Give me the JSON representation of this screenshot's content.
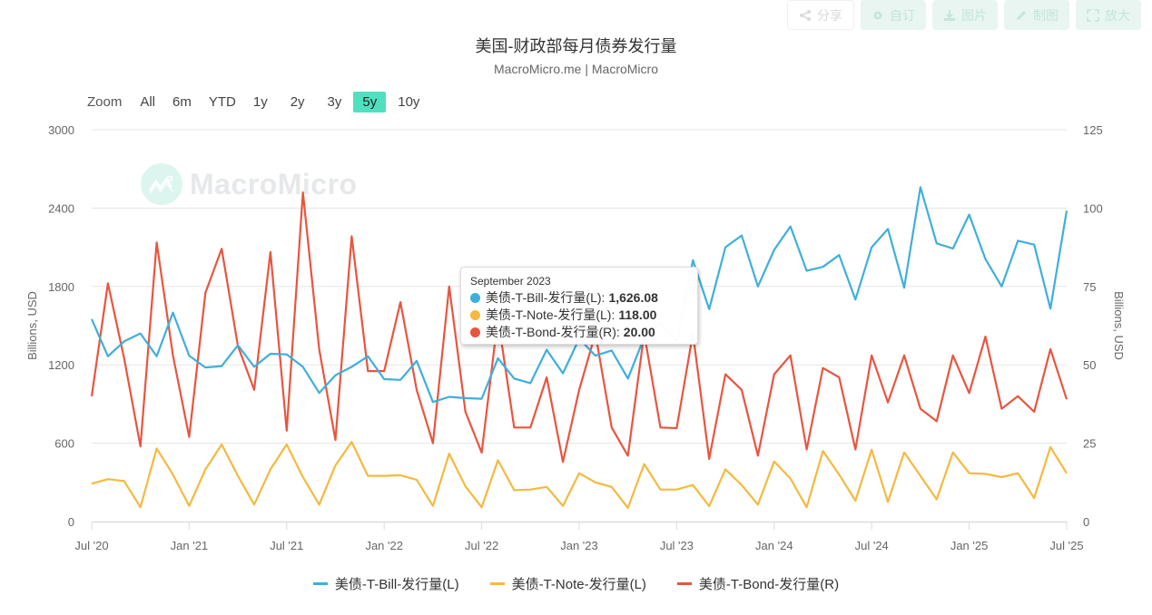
{
  "toolbar": {
    "share": "分享",
    "customize": "自订",
    "image": "图片",
    "draw": "制图",
    "enlarge": "放大"
  },
  "header": {
    "title": "美国-财政部每月债券发行量",
    "subtitle": "MacroMicro.me | MacroMicro"
  },
  "range_selector": {
    "label": "Zoom",
    "buttons": [
      "All",
      "6m",
      "YTD",
      "1y",
      "2y",
      "3y",
      "5y",
      "10y"
    ],
    "active": "5y"
  },
  "watermark": "MacroMicro",
  "tooltip": {
    "date": "September 2023",
    "rows": [
      {
        "label": "美债-T-Bill-发行量(L):",
        "value": "1,626.08",
        "color": "#3eafdc"
      },
      {
        "label": "美债-T-Note-发行量(L):",
        "value": "118.00",
        "color": "#f5b93e"
      },
      {
        "label": "美债-T-Bond-发行量(R):",
        "value": "20.00",
        "color": "#e8553f"
      }
    ]
  },
  "colors": {
    "bill": "#3eafdc",
    "note": "#f5b93e",
    "bond": "#e8553f",
    "grid": "#e6e6e6",
    "active_range": "#4fe0c0"
  },
  "chart_data": {
    "type": "line",
    "title": "美国-财政部每月债券发行量",
    "subtitle": "MacroMicro.me | MacroMicro",
    "xlabel": "",
    "ylabel": "Billions, USD",
    "ylabel_right": "Billions, USD",
    "ylim": [
      0,
      3000
    ],
    "ylim_right": [
      0,
      125
    ],
    "yticks": [
      0,
      600,
      1200,
      1800,
      2400,
      3000
    ],
    "yticks_right": [
      0,
      25,
      50,
      75,
      100,
      125
    ],
    "xticks": [
      "Jul '20",
      "Jan '21",
      "Jul '21",
      "Jan '22",
      "Jul '22",
      "Jan '23",
      "Jul '23",
      "Jan '24",
      "Jul '24",
      "Jan '25",
      "Jul '25"
    ],
    "grid": true,
    "legend_position": "bottom",
    "x": [
      "2020-07",
      "2020-08",
      "2020-09",
      "2020-10",
      "2020-11",
      "2020-12",
      "2021-01",
      "2021-02",
      "2021-03",
      "2021-04",
      "2021-05",
      "2021-06",
      "2021-07",
      "2021-08",
      "2021-09",
      "2021-10",
      "2021-11",
      "2021-12",
      "2022-01",
      "2022-02",
      "2022-03",
      "2022-04",
      "2022-05",
      "2022-06",
      "2022-07",
      "2022-08",
      "2022-09",
      "2022-10",
      "2022-11",
      "2022-12",
      "2023-01",
      "2023-02",
      "2023-03",
      "2023-04",
      "2023-05",
      "2023-06",
      "2023-07",
      "2023-08",
      "2023-09",
      "2023-10",
      "2023-11",
      "2023-12",
      "2024-01",
      "2024-02",
      "2024-03",
      "2024-04",
      "2024-05",
      "2024-06",
      "2024-07",
      "2024-08",
      "2024-09",
      "2024-10",
      "2024-11",
      "2024-12",
      "2025-01",
      "2025-02",
      "2025-03",
      "2025-04",
      "2025-05",
      "2025-06",
      "2025-07"
    ],
    "series": [
      {
        "name": "美债-T-Bill-发行量(L)",
        "axis": "left",
        "values": [
          1550,
          1265,
          1380,
          1440,
          1265,
          1600,
          1270,
          1180,
          1190,
          1350,
          1185,
          1285,
          1280,
          1185,
          985,
          1120,
          1185,
          1265,
          1090,
          1085,
          1230,
          915,
          955,
          945,
          940,
          1250,
          1095,
          1060,
          1315,
          1135,
          1400,
          1270,
          1310,
          1095,
          1410,
          1520,
          1380,
          2000,
          1626.08,
          2100,
          2190,
          1800,
          2080,
          2260,
          1920,
          1950,
          2040,
          1700,
          2100,
          2240,
          1790,
          2560,
          2130,
          2090,
          2350,
          2010,
          1800,
          2150,
          2120,
          1630,
          2380
        ]
      },
      {
        "name": "美债-T-Note-发行量(L)",
        "axis": "left",
        "values": [
          290,
          325,
          310,
          110,
          560,
          360,
          120,
          400,
          590,
          350,
          130,
          400,
          590,
          340,
          130,
          430,
          610,
          350,
          350,
          355,
          320,
          120,
          520,
          270,
          110,
          470,
          240,
          245,
          265,
          120,
          370,
          300,
          265,
          105,
          440,
          245,
          245,
          280,
          118,
          400,
          280,
          130,
          460,
          330,
          110,
          540,
          360,
          160,
          550,
          150,
          530,
          350,
          170,
          530,
          370,
          365,
          340,
          370,
          180,
          570,
          370
        ]
      },
      {
        "name": "美债-T-Bond-发行量(R)",
        "axis": "left_scale_right",
        "values": [
          40,
          76,
          52,
          24,
          89,
          53,
          27,
          73,
          87,
          56,
          42,
          86,
          29,
          105,
          55,
          26,
          91,
          48,
          48,
          70,
          42,
          25,
          75,
          35,
          22,
          65,
          30,
          30,
          46,
          19,
          42,
          60,
          30,
          21,
          60,
          30,
          29.8,
          60,
          20,
          47,
          42,
          21,
          47,
          53,
          23,
          49,
          46,
          23,
          53,
          38,
          53,
          36,
          32,
          53,
          41,
          59,
          36,
          40,
          35,
          55,
          39
        ]
      }
    ]
  },
  "legend": [
    {
      "label": "美债-T-Bill-发行量(L)",
      "color": "#3eafdc"
    },
    {
      "label": "美债-T-Note-发行量(L)",
      "color": "#f5b93e"
    },
    {
      "label": "美债-T-Bond-发行量(R)",
      "color": "#e8553f"
    }
  ]
}
